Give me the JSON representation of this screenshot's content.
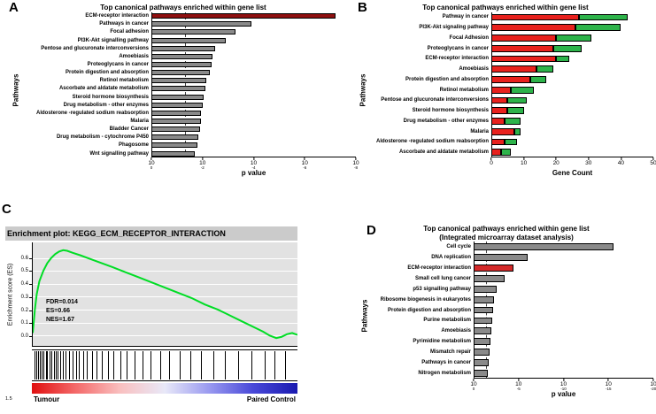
{
  "figure": {
    "panels": [
      {
        "label": "A"
      },
      {
        "label": "B"
      },
      {
        "label": "C"
      },
      {
        "label": "D"
      }
    ]
  },
  "chart_data": [
    {
      "panel": "A",
      "type": "bar",
      "title": "Top canonical pathways enriched within gene list",
      "xlabel": "p value",
      "ylabel": "Pathways",
      "x_scale": "log10 p-value, 10^0 to 10^-8",
      "x_tick_exponents": [
        0,
        -2,
        -4,
        -6,
        -8
      ],
      "x_max_exponent": 8,
      "significance_line_exponent": 1.3,
      "bar_color_default": "#8a8a8a",
      "bar_color_highlight": "#8f1010",
      "highlight_index": 0,
      "categories": [
        "ECM-receptor interaction",
        "Pathways in cancer",
        "Focal adhesion",
        "PI3K-Akt signalling pathway",
        "Pentose and glucuronate interconversions",
        "Amoebiasis",
        "Proteoglycans in cancer",
        "Protein digestion and absorption",
        "Retinol metabolism",
        "Ascorbate and aldatate metabolism",
        "Steroid hormone biosynthesis",
        "Drug metabolism - other enzymes",
        "Aldosterone -regulated sodium reabsorption",
        "Malaria",
        "Bladder Cancer",
        "Drug metabolism - cytochrome P450",
        "Phagosome",
        "Wnt signalling pathway"
      ],
      "values_neg_log10_p": [
        7.2,
        3.9,
        3.3,
        2.9,
        2.5,
        2.4,
        2.35,
        2.3,
        2.15,
        2.1,
        2.05,
        2.0,
        1.95,
        1.95,
        1.9,
        1.85,
        1.8,
        1.7
      ]
    },
    {
      "panel": "B",
      "type": "stacked_bar",
      "title": "Top canonical pathways enriched within gene list",
      "xlabel": "Gene Count",
      "ylabel": "Pathways",
      "xlim": [
        0,
        50
      ],
      "x_ticks": [
        0,
        10,
        20,
        30,
        40,
        50
      ],
      "categories": [
        "Pathway in cancer",
        "PI3K-Akt signaling pathway",
        "Focal Adhesion",
        "Proteoglycans in cancer",
        "ECM-receptor interaction",
        "Amoebiasis",
        "Protein digestion and absorption",
        "Retinol metabolism",
        "Pentose and glucuronate interconversions",
        "Steroid hormone biosynthesis",
        "Drug metabolism - other enzymes",
        "Malaria",
        "Aldosterone -regulated sodium reabsorption",
        "Ascorbate and aldatate metabolism"
      ],
      "series": [
        {
          "name": "red",
          "color": "#e8211d",
          "values": [
            27,
            26,
            20,
            19,
            20,
            14,
            12,
            6,
            5,
            5,
            4,
            7,
            4,
            3
          ]
        },
        {
          "name": "green",
          "color": "#2db34a",
          "values": [
            15,
            14,
            11,
            9,
            4,
            5,
            5,
            7,
            6,
            5,
            5,
            2,
            4,
            3
          ]
        }
      ]
    },
    {
      "panel": "C",
      "type": "line",
      "title": "Enrichment plot: KEGG_ECM_RECEPTOR_INTERACTION",
      "ylabel": "Enrichment score (ES)",
      "y_ticks": [
        0.6,
        0.5,
        0.4,
        0.3,
        0.2,
        0.1,
        0.0
      ],
      "ylim": [
        -0.08,
        0.72
      ],
      "grid": true,
      "line_color": "#00dd25",
      "stats": [
        "FDR=0.014",
        "ES=0.66",
        "NES=1.67"
      ],
      "es_curve": {
        "x": [
          0,
          0.008,
          0.015,
          0.025,
          0.04,
          0.055,
          0.07,
          0.085,
          0.1,
          0.115,
          0.13,
          0.15,
          0.18,
          0.22,
          0.26,
          0.3,
          0.35,
          0.4,
          0.45,
          0.5,
          0.55,
          0.6,
          0.65,
          0.7,
          0.75,
          0.8,
          0.84,
          0.87,
          0.895,
          0.92,
          0.94,
          0.96,
          0.98,
          1.0
        ],
        "y": [
          0.02,
          0.2,
          0.32,
          0.42,
          0.5,
          0.56,
          0.6,
          0.63,
          0.65,
          0.66,
          0.655,
          0.64,
          0.62,
          0.59,
          0.56,
          0.53,
          0.49,
          0.45,
          0.41,
          0.37,
          0.33,
          0.29,
          0.24,
          0.2,
          0.15,
          0.1,
          0.06,
          0.03,
          0.0,
          -0.02,
          -0.01,
          0.01,
          0.02,
          0.005
        ]
      },
      "hit_positions": [
        0.01,
        0.016,
        0.022,
        0.03,
        0.036,
        0.044,
        0.052,
        0.058,
        0.066,
        0.074,
        0.082,
        0.09,
        0.098,
        0.108,
        0.118,
        0.128,
        0.14,
        0.152,
        0.165,
        0.178,
        0.192,
        0.208,
        0.225,
        0.244,
        0.264,
        0.285,
        0.308,
        0.332,
        0.358,
        0.386,
        0.416,
        0.448,
        0.482,
        0.518,
        0.556,
        0.596,
        0.638,
        0.682,
        0.728,
        0.776,
        0.826,
        0.878,
        0.912,
        0.952
      ],
      "gradient_colors": [
        "#e01010",
        "#f46a6a",
        "#f9c0c0",
        "#e8e8f8",
        "#9a9af0",
        "#4848d8",
        "#1a1ab0"
      ],
      "left_group_label": "Tumour",
      "right_group_label": "Paired Control",
      "corner_tick_label": "1.5"
    },
    {
      "panel": "D",
      "type": "bar",
      "title": "Top canonical pathways enriched within gene list",
      "subtitle": "(Integrated microarray dataset analysis)",
      "xlabel": "p value",
      "ylabel": "Pathways",
      "x_scale": "log10 p-value, 10^0 to 10^-20",
      "x_tick_exponents": [
        0,
        -5,
        -10,
        -15,
        -20
      ],
      "x_max_exponent": 20,
      "significance_line_exponent": 1.3,
      "bar_color_default": "#8a8a8a",
      "bar_color_highlight": "#d42a2a",
      "highlight_index": 2,
      "categories": [
        "Cell cycle",
        "DNA replication",
        "ECM-receptor interaction",
        "Small cell lung cancer",
        "p53 signalling pathway",
        "Ribosome biogenesis in eukaryotes",
        "Protein digestion and absorption",
        "Purine metabolism",
        "Amoebiasis",
        "Pyrimidine metabolism",
        "Mismatch repair",
        "Pathways in cancer",
        "Nitrogen metabolism"
      ],
      "values_neg_log10_p": [
        15.6,
        6.0,
        4.4,
        3.4,
        2.6,
        2.3,
        2.15,
        2.05,
        1.95,
        1.85,
        1.75,
        1.65,
        1.55
      ]
    }
  ]
}
